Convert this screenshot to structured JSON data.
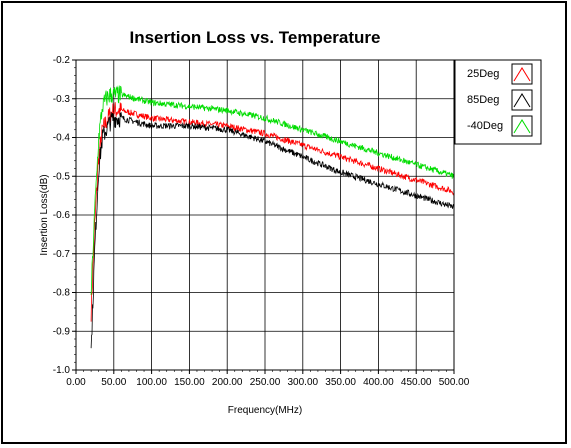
{
  "chart_data": {
    "type": "line",
    "title": "Insertion Loss vs. Temperature",
    "xlabel": "Frequency(MHz)",
    "ylabel": "Insertion Loss(dB)",
    "xlim": [
      0,
      500
    ],
    "ylim": [
      -1.0,
      -0.2
    ],
    "x_ticks": [
      "0.00",
      "50.00",
      "100.00",
      "150.00",
      "200.00",
      "250.00",
      "300.00",
      "350.00",
      "400.00",
      "450.00",
      "500.00"
    ],
    "y_ticks": [
      "-0.2",
      "-0.3",
      "-0.4",
      "-0.5",
      "-0.6",
      "-0.7",
      "-0.8",
      "-0.9",
      "-1.0"
    ],
    "grid": true,
    "legend_position": "top-right",
    "series": [
      {
        "name": "25Deg",
        "color": "#ff0000",
        "x": [
          20,
          25,
          30,
          35,
          40,
          45,
          50,
          60,
          80,
          100,
          150,
          200,
          250,
          300,
          350,
          400,
          450,
          500
        ],
        "y": [
          -0.85,
          -0.62,
          -0.45,
          -0.38,
          -0.36,
          -0.34,
          -0.33,
          -0.33,
          -0.34,
          -0.35,
          -0.36,
          -0.37,
          -0.39,
          -0.42,
          -0.45,
          -0.48,
          -0.51,
          -0.54
        ]
      },
      {
        "name": "85Deg",
        "color": "#000000",
        "x": [
          20,
          25,
          30,
          35,
          40,
          45,
          50,
          60,
          80,
          100,
          150,
          200,
          250,
          300,
          350,
          400,
          450,
          500
        ],
        "y": [
          -0.95,
          -0.68,
          -0.48,
          -0.4,
          -0.38,
          -0.36,
          -0.35,
          -0.35,
          -0.36,
          -0.37,
          -0.37,
          -0.38,
          -0.41,
          -0.45,
          -0.49,
          -0.52,
          -0.55,
          -0.58
        ]
      },
      {
        "name": "-40Deg",
        "color": "#00dd00",
        "x": [
          20,
          25,
          30,
          35,
          40,
          45,
          50,
          60,
          80,
          100,
          150,
          200,
          250,
          300,
          350,
          400,
          450,
          500
        ],
        "y": [
          -0.8,
          -0.58,
          -0.4,
          -0.32,
          -0.3,
          -0.29,
          -0.29,
          -0.29,
          -0.3,
          -0.31,
          -0.32,
          -0.33,
          -0.35,
          -0.38,
          -0.41,
          -0.44,
          -0.47,
          -0.5
        ]
      }
    ]
  }
}
